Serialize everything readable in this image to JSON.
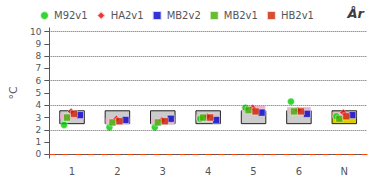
{
  "chart_data": {
    "type": "scatter",
    "title": "År",
    "ylabel": "°C",
    "categories": [
      "1",
      "2",
      "3",
      "4",
      "5",
      "6",
      "N"
    ],
    "series": [
      {
        "name": "M92v1",
        "color": "#00cc00",
        "marker": "circle",
        "values": [
          2.4,
          2.2,
          2.2,
          2.9,
          3.8,
          4.3,
          3.1
        ]
      },
      {
        "name": "HA2v1",
        "color": "#ee0000",
        "marker": "diamond",
        "values": [
          3.5,
          2.9,
          2.8,
          3.1,
          3.8,
          3.6,
          3.4
        ]
      },
      {
        "name": "MB2v2",
        "color": "#0000cc",
        "marker": "square",
        "values": [
          3.2,
          2.8,
          2.9,
          2.8,
          3.4,
          3.3,
          3.2
        ]
      },
      {
        "name": "MB2v1",
        "color": "#44aa00",
        "marker": "square",
        "values": [
          3.0,
          2.6,
          2.6,
          3.0,
          3.6,
          3.5,
          2.9
        ]
      },
      {
        "name": "HB2v1",
        "color": "#cc2200",
        "marker": "square",
        "values": [
          3.3,
          2.7,
          2.7,
          3.0,
          3.5,
          3.5,
          3.1
        ]
      }
    ],
    "ylim": [
      -0.3,
      10.3
    ],
    "yticks": [
      0,
      1,
      2,
      3,
      4,
      5,
      6,
      7,
      8,
      9,
      10
    ],
    "grid": false,
    "legend": "upper left",
    "boxes": {
      "low": 2.5,
      "high": 3.55,
      "colors": [
        "#cccccc",
        "#cccccc",
        "#cccccc",
        "#cccccc",
        "#cccccc",
        "#cccccc",
        "#ddcc00"
      ]
    },
    "range_bars": {
      "color": "#e8b4d0",
      "values": [
        3.1,
        2.7,
        2.7,
        3.0,
        3.7,
        3.6,
        3.2
      ]
    },
    "hlines": [
      {
        "y": 2,
        "color": "#666666",
        "line_style": "dotted"
      },
      {
        "y": 4,
        "color": "#666666",
        "line_style": "dotted"
      },
      {
        "y": 6,
        "color": "#666666",
        "line_style": "dotted"
      },
      {
        "y": 8,
        "color": "#666666",
        "line_style": "dotted"
      },
      {
        "y": 10,
        "color": "#666666",
        "line_style": "dotted"
      },
      {
        "y": 0,
        "color": "#ff4400",
        "line_style": "dashdot"
      }
    ]
  }
}
